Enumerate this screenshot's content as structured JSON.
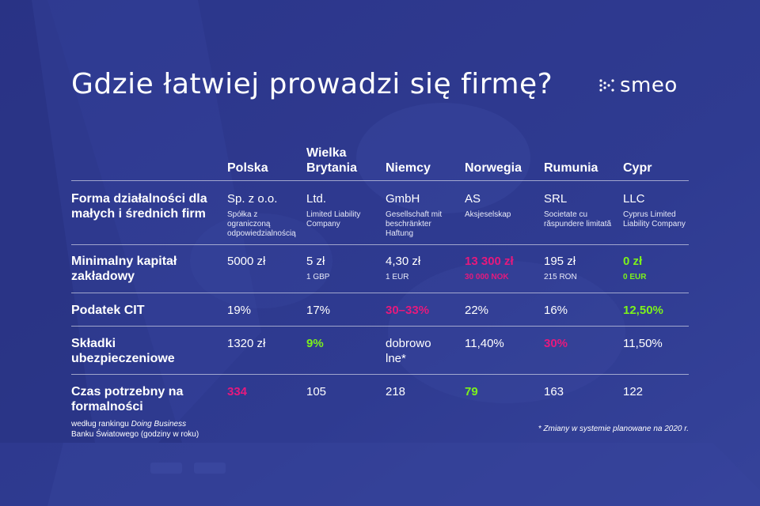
{
  "title": "Gdzie łatwiej prowadzi się firmę?",
  "logo": {
    "text": "smeo",
    "icon": "smeo-logo-icon"
  },
  "colors": {
    "background": "#2f3a8f",
    "highlight_pink": "#e6197d",
    "highlight_green": "#7cf21b"
  },
  "columns": [
    "Polska",
    "Wielka Brytania",
    "Niemcy",
    "Norwegia",
    "Rumunia",
    "Cypr"
  ],
  "rows": [
    {
      "label": "Forma działalności dla małych i średnich firm",
      "note": "",
      "cells": [
        {
          "value": "Sp. z o.o.",
          "sub": "Spółka z ograniczoną odpowiedzialnością"
        },
        {
          "value": "Ltd.",
          "sub": "Limited Liability Company"
        },
        {
          "value": "GmbH",
          "sub": "Gesellschaft mit beschränkter Haftung"
        },
        {
          "value": "AS",
          "sub": "Aksjeselskap"
        },
        {
          "value": "SRL",
          "sub": "Societate cu răspundere limitată"
        },
        {
          "value": "LLC",
          "sub": "Cyprus Limited Liability Company"
        }
      ]
    },
    {
      "label": "Minimalny kapitał zakładowy",
      "note": "",
      "cells": [
        {
          "value": "5000 zł",
          "sub": ""
        },
        {
          "value": "5 zł",
          "sub": "1 GBP"
        },
        {
          "value": "4,30 zł",
          "sub": "1 EUR"
        },
        {
          "value": "13 300 zł",
          "sub": "30 000 NOK"
        },
        {
          "value": "195 zł",
          "sub": "215 RON"
        },
        {
          "value": "0 zł",
          "sub": "0 EUR"
        }
      ]
    },
    {
      "label": "Podatek CIT",
      "note": "",
      "cells": [
        {
          "value": "19%"
        },
        {
          "value": "17%"
        },
        {
          "value": "30–33%"
        },
        {
          "value": "22%"
        },
        {
          "value": "16%"
        },
        {
          "value": "12,50%"
        }
      ]
    },
    {
      "label": "Składki ubezpieczeniowe",
      "note": "",
      "cells": [
        {
          "value": "1320 zł"
        },
        {
          "value": "9%"
        },
        {
          "value": "dobrowolne*"
        },
        {
          "value": "11,40%"
        },
        {
          "value": "30%"
        },
        {
          "value": "11,50%"
        }
      ]
    },
    {
      "label": "Czas potrzebny na formalności",
      "note_pre": "według rankingu ",
      "note_em": "Doing Business",
      "note_post": " Banku Światowego (godziny w roku)",
      "cells": [
        {
          "value": "334"
        },
        {
          "value": "105"
        },
        {
          "value": "218"
        },
        {
          "value": "79"
        },
        {
          "value": "163"
        },
        {
          "value": "122"
        }
      ]
    }
  ],
  "footnote": "* Zmiany w systemie planowane na 2020 r."
}
